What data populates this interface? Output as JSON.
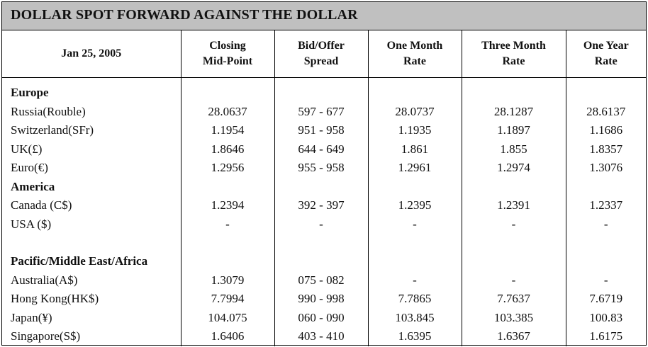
{
  "title": "DOLLAR SPOT FORWARD AGAINST THE DOLLAR",
  "header": {
    "date": "Jan 25, 2005",
    "columns": [
      "Closing\nMid-Point",
      "Bid/Offer\nSpread",
      "One Month\nRate",
      "Three Month\nRate",
      "One Year\nRate"
    ]
  },
  "rows": [
    {
      "kind": "group",
      "label": "Europe"
    },
    {
      "kind": "data",
      "label": "Russia(Rouble)",
      "values": [
        "28.0637",
        "597 - 677",
        "28.0737",
        "28.1287",
        "28.6137"
      ]
    },
    {
      "kind": "data",
      "label": "Switzerland(SFr)",
      "values": [
        "1.1954",
        "951 - 958",
        "1.1935",
        "1.1897",
        "1.1686"
      ]
    },
    {
      "kind": "data",
      "label": "UK(£)",
      "values": [
        "1.8646",
        "644 - 649",
        "1.861",
        "1.855",
        "1.8357"
      ]
    },
    {
      "kind": "data",
      "label": "Euro(€)",
      "values": [
        "1.2956",
        "955 - 958",
        "1.2961",
        "1.2974",
        "1.3076"
      ]
    },
    {
      "kind": "group",
      "label": "America"
    },
    {
      "kind": "data",
      "label": "Canada (C$)",
      "values": [
        "1.2394",
        "392 - 397",
        "1.2395",
        "1.2391",
        "1.2337"
      ]
    },
    {
      "kind": "data",
      "label": "USA ($)",
      "values": [
        "-",
        "-",
        "-",
        "-",
        "-"
      ]
    },
    {
      "kind": "spacer",
      "label": ""
    },
    {
      "kind": "group",
      "label": "Pacific/Middle East/Africa"
    },
    {
      "kind": "data",
      "label": "Australia(A$)",
      "values": [
        "1.3079",
        "075 - 082",
        "-",
        "-",
        "-"
      ]
    },
    {
      "kind": "data",
      "label": "Hong Kong(HK$)",
      "values": [
        "7.7994",
        "990 - 998",
        "7.7865",
        "7.7637",
        "7.6719"
      ]
    },
    {
      "kind": "data",
      "label": "Japan(¥)",
      "values": [
        "104.075",
        "060 - 090",
        "103.845",
        "103.385",
        "100.83"
      ]
    },
    {
      "kind": "data",
      "label": "Singapore(S$)",
      "values": [
        "1.6406",
        "403 - 410",
        "1.6395",
        "1.6367",
        "1.6175"
      ]
    }
  ]
}
